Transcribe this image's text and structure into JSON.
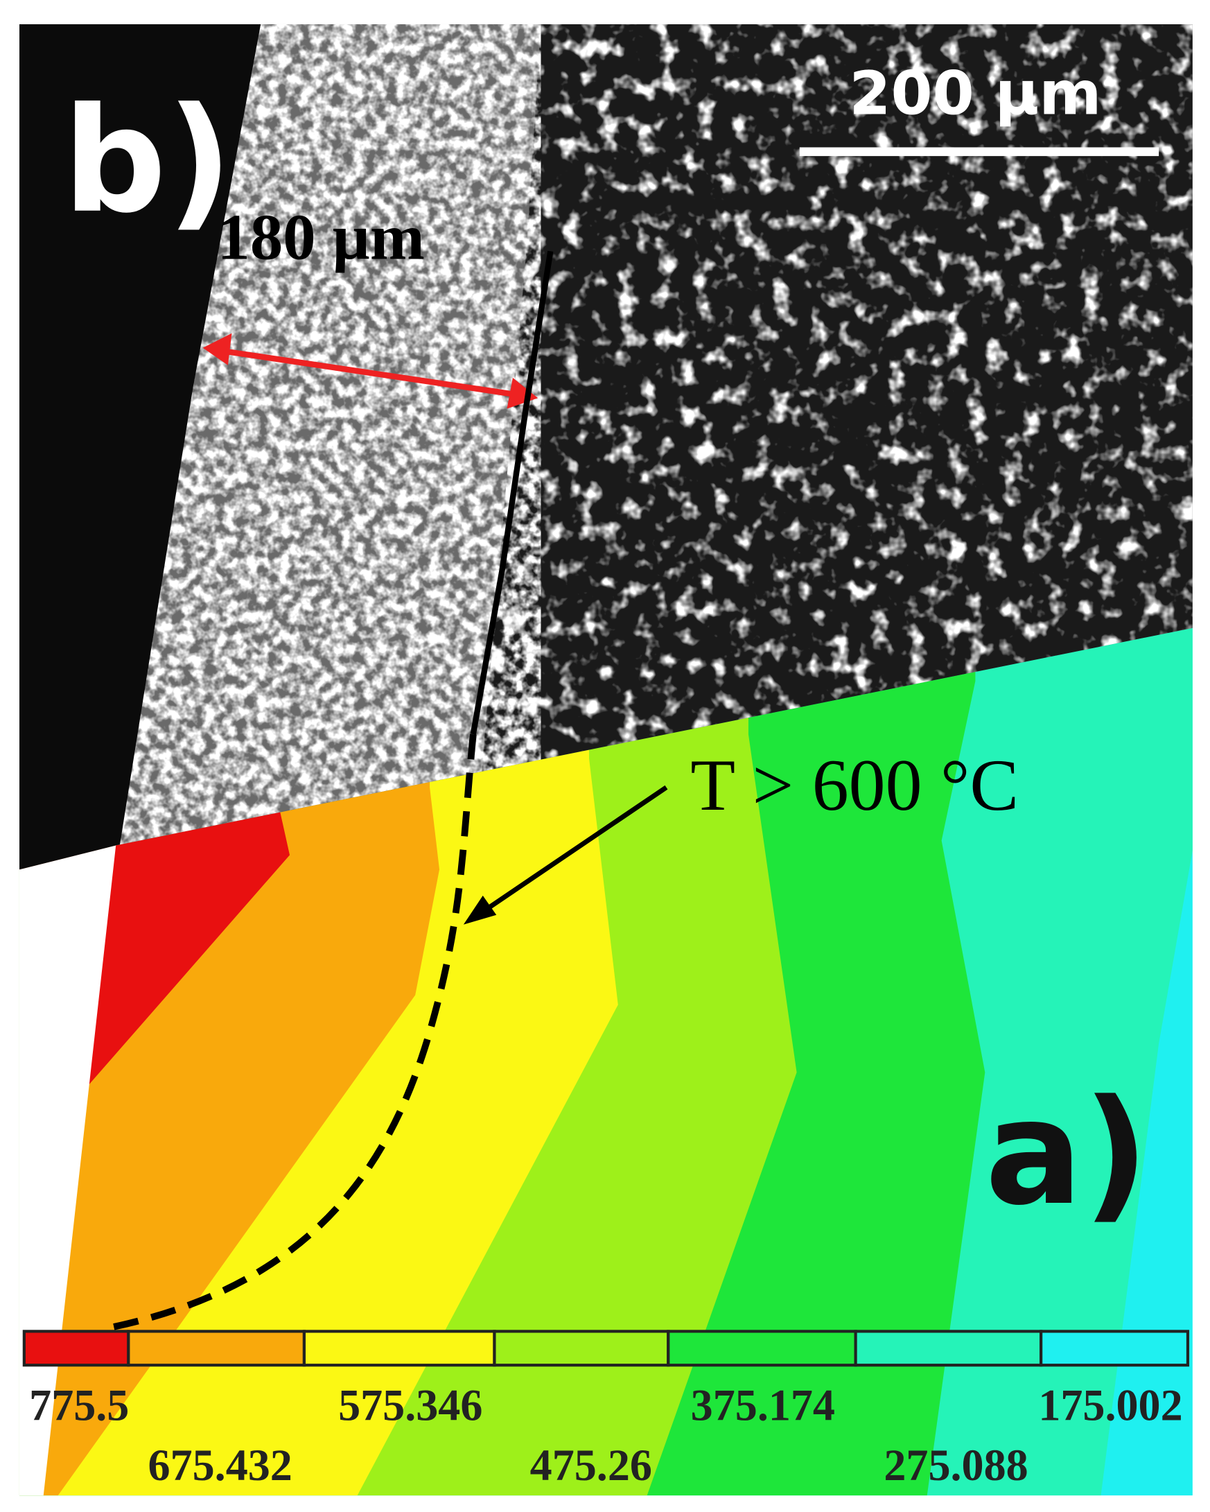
{
  "panel_labels": [
    "b)",
    "a)"
  ],
  "scale_bar": "200 µm",
  "width_label": "180 µm",
  "annotation": "T > 600 °C",
  "colorbar": {
    "labels": [
      "775.5",
      "675.432",
      "575.346",
      "475.26",
      "375.174",
      "275.088",
      "175.002"
    ]
  }
}
